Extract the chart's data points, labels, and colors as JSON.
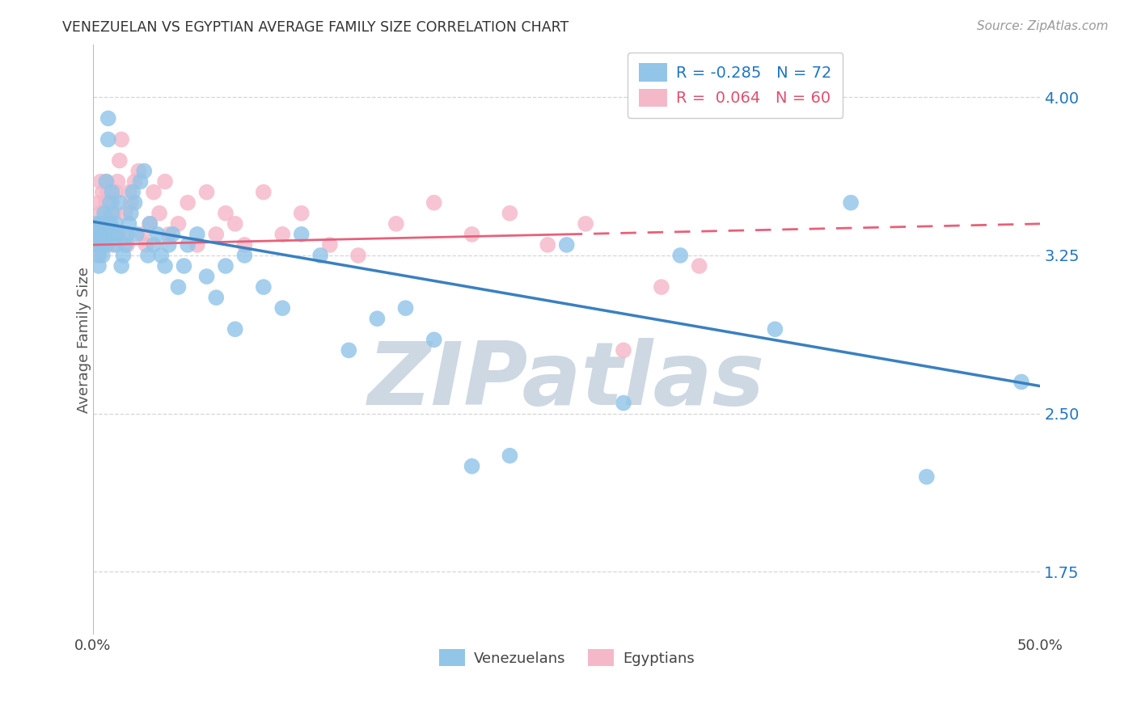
{
  "title": "VENEZUELAN VS EGYPTIAN AVERAGE FAMILY SIZE CORRELATION CHART",
  "source": "Source: ZipAtlas.com",
  "ylabel": "Average Family Size",
  "yticks": [
    1.75,
    2.5,
    3.25,
    4.0
  ],
  "ylim": [
    1.45,
    4.25
  ],
  "xlim": [
    0.0,
    0.5
  ],
  "legend_blue_r": "-0.285",
  "legend_blue_n": "72",
  "legend_pink_r": "0.064",
  "legend_pink_n": "60",
  "blue_color": "#92c5e8",
  "pink_color": "#f5b8c8",
  "blue_line_color": "#3a80c0",
  "pink_line_color": "#e8607a",
  "venezolanos_x": [
    0.001,
    0.002,
    0.002,
    0.003,
    0.003,
    0.003,
    0.004,
    0.004,
    0.004,
    0.005,
    0.005,
    0.005,
    0.006,
    0.006,
    0.007,
    0.007,
    0.008,
    0.008,
    0.009,
    0.009,
    0.01,
    0.01,
    0.011,
    0.012,
    0.012,
    0.013,
    0.014,
    0.015,
    0.016,
    0.017,
    0.018,
    0.019,
    0.02,
    0.021,
    0.022,
    0.023,
    0.025,
    0.027,
    0.029,
    0.03,
    0.032,
    0.034,
    0.036,
    0.038,
    0.04,
    0.042,
    0.045,
    0.048,
    0.05,
    0.055,
    0.06,
    0.065,
    0.07,
    0.075,
    0.08,
    0.09,
    0.1,
    0.11,
    0.12,
    0.135,
    0.15,
    0.165,
    0.18,
    0.2,
    0.22,
    0.25,
    0.28,
    0.31,
    0.36,
    0.4,
    0.44,
    0.49
  ],
  "venezolanos_y": [
    3.35,
    3.3,
    3.4,
    3.25,
    3.35,
    3.2,
    3.3,
    3.35,
    3.4,
    3.25,
    3.3,
    3.4,
    3.35,
    3.45,
    3.3,
    3.6,
    3.8,
    3.9,
    3.4,
    3.5,
    3.45,
    3.55,
    3.35,
    3.4,
    3.3,
    3.35,
    3.5,
    3.2,
    3.25,
    3.3,
    3.35,
    3.4,
    3.45,
    3.55,
    3.5,
    3.35,
    3.6,
    3.65,
    3.25,
    3.4,
    3.3,
    3.35,
    3.25,
    3.2,
    3.3,
    3.35,
    3.1,
    3.2,
    3.3,
    3.35,
    3.15,
    3.05,
    3.2,
    2.9,
    3.25,
    3.1,
    3.0,
    3.35,
    3.25,
    2.8,
    2.95,
    3.0,
    2.85,
    2.25,
    2.3,
    3.3,
    2.55,
    3.25,
    2.9,
    3.5,
    2.2,
    2.65
  ],
  "egyptians_x": [
    0.001,
    0.002,
    0.002,
    0.003,
    0.003,
    0.004,
    0.004,
    0.005,
    0.005,
    0.006,
    0.006,
    0.007,
    0.007,
    0.008,
    0.008,
    0.009,
    0.009,
    0.01,
    0.01,
    0.011,
    0.012,
    0.013,
    0.014,
    0.015,
    0.016,
    0.017,
    0.018,
    0.019,
    0.02,
    0.022,
    0.024,
    0.026,
    0.028,
    0.03,
    0.032,
    0.035,
    0.038,
    0.04,
    0.045,
    0.05,
    0.055,
    0.06,
    0.065,
    0.07,
    0.075,
    0.08,
    0.09,
    0.1,
    0.11,
    0.125,
    0.14,
    0.16,
    0.18,
    0.2,
    0.22,
    0.24,
    0.26,
    0.28,
    0.3,
    0.32
  ],
  "egyptians_y": [
    3.3,
    3.35,
    3.4,
    3.5,
    3.25,
    3.6,
    3.45,
    3.55,
    3.3,
    3.4,
    3.35,
    3.5,
    3.6,
    3.45,
    3.55,
    3.35,
    3.4,
    3.3,
    3.5,
    3.45,
    3.55,
    3.6,
    3.7,
    3.8,
    3.35,
    3.45,
    3.3,
    3.55,
    3.5,
    3.6,
    3.65,
    3.35,
    3.3,
    3.4,
    3.55,
    3.45,
    3.6,
    3.35,
    3.4,
    3.5,
    3.3,
    3.55,
    3.35,
    3.45,
    3.4,
    3.3,
    3.55,
    3.35,
    3.45,
    3.3,
    3.25,
    3.4,
    3.5,
    3.35,
    3.45,
    3.3,
    3.4,
    2.8,
    3.1,
    3.2
  ],
  "background_color": "#ffffff",
  "grid_color": "#cccccc",
  "watermark_text": "ZIPatlas",
  "watermark_color": "#cdd8e3",
  "blue_trendline_x0": 0.0,
  "blue_trendline_y0": 3.41,
  "blue_trendline_x1": 0.5,
  "blue_trendline_y1": 2.63,
  "pink_trendline_solid_x0": 0.0,
  "pink_trendline_solid_y0": 3.3,
  "pink_trendline_solid_x1": 0.25,
  "pink_trendline_solid_y1": 3.35,
  "pink_trendline_dash_x1": 0.5,
  "pink_trendline_dash_y1": 3.4
}
